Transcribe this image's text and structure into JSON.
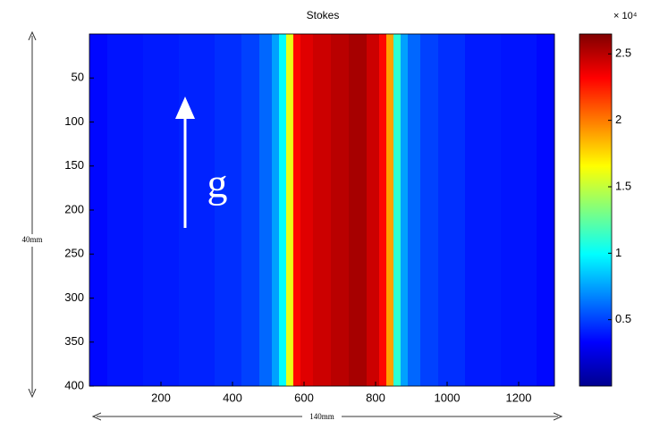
{
  "chart_data": {
    "type": "heatmap",
    "title": "Stokes",
    "x": [
      0,
      100,
      200,
      300,
      400,
      450,
      500,
      520,
      540,
      560,
      580,
      600,
      650,
      700,
      750,
      800,
      820,
      840,
      860,
      880,
      900,
      950,
      1000,
      1100,
      1200,
      1300
    ],
    "values": [
      0.35,
      0.38,
      0.4,
      0.42,
      0.45,
      0.5,
      0.6,
      0.75,
      1.0,
      1.6,
      2.3,
      2.4,
      2.45,
      2.5,
      2.55,
      2.45,
      2.3,
      1.9,
      1.1,
      0.75,
      0.6,
      0.5,
      0.45,
      0.4,
      0.38,
      0.35
    ],
    "xlim": [
      0,
      1300
    ],
    "xticks": [
      200,
      400,
      600,
      800,
      1000,
      1200
    ],
    "ylim": [
      0,
      400
    ],
    "yticks": [
      50,
      100,
      150,
      200,
      250,
      300,
      350,
      400
    ],
    "y_reversed": true,
    "clim": [
      0,
      2.65
    ],
    "cticks": [
      0.5,
      1,
      1.5,
      2,
      2.5
    ],
    "colorbar_label": "× 10⁴",
    "colormap": "jet",
    "annotations": {
      "arrow_label": "g",
      "vertical_extent": "40mm",
      "horizontal_extent": "140mm"
    }
  }
}
